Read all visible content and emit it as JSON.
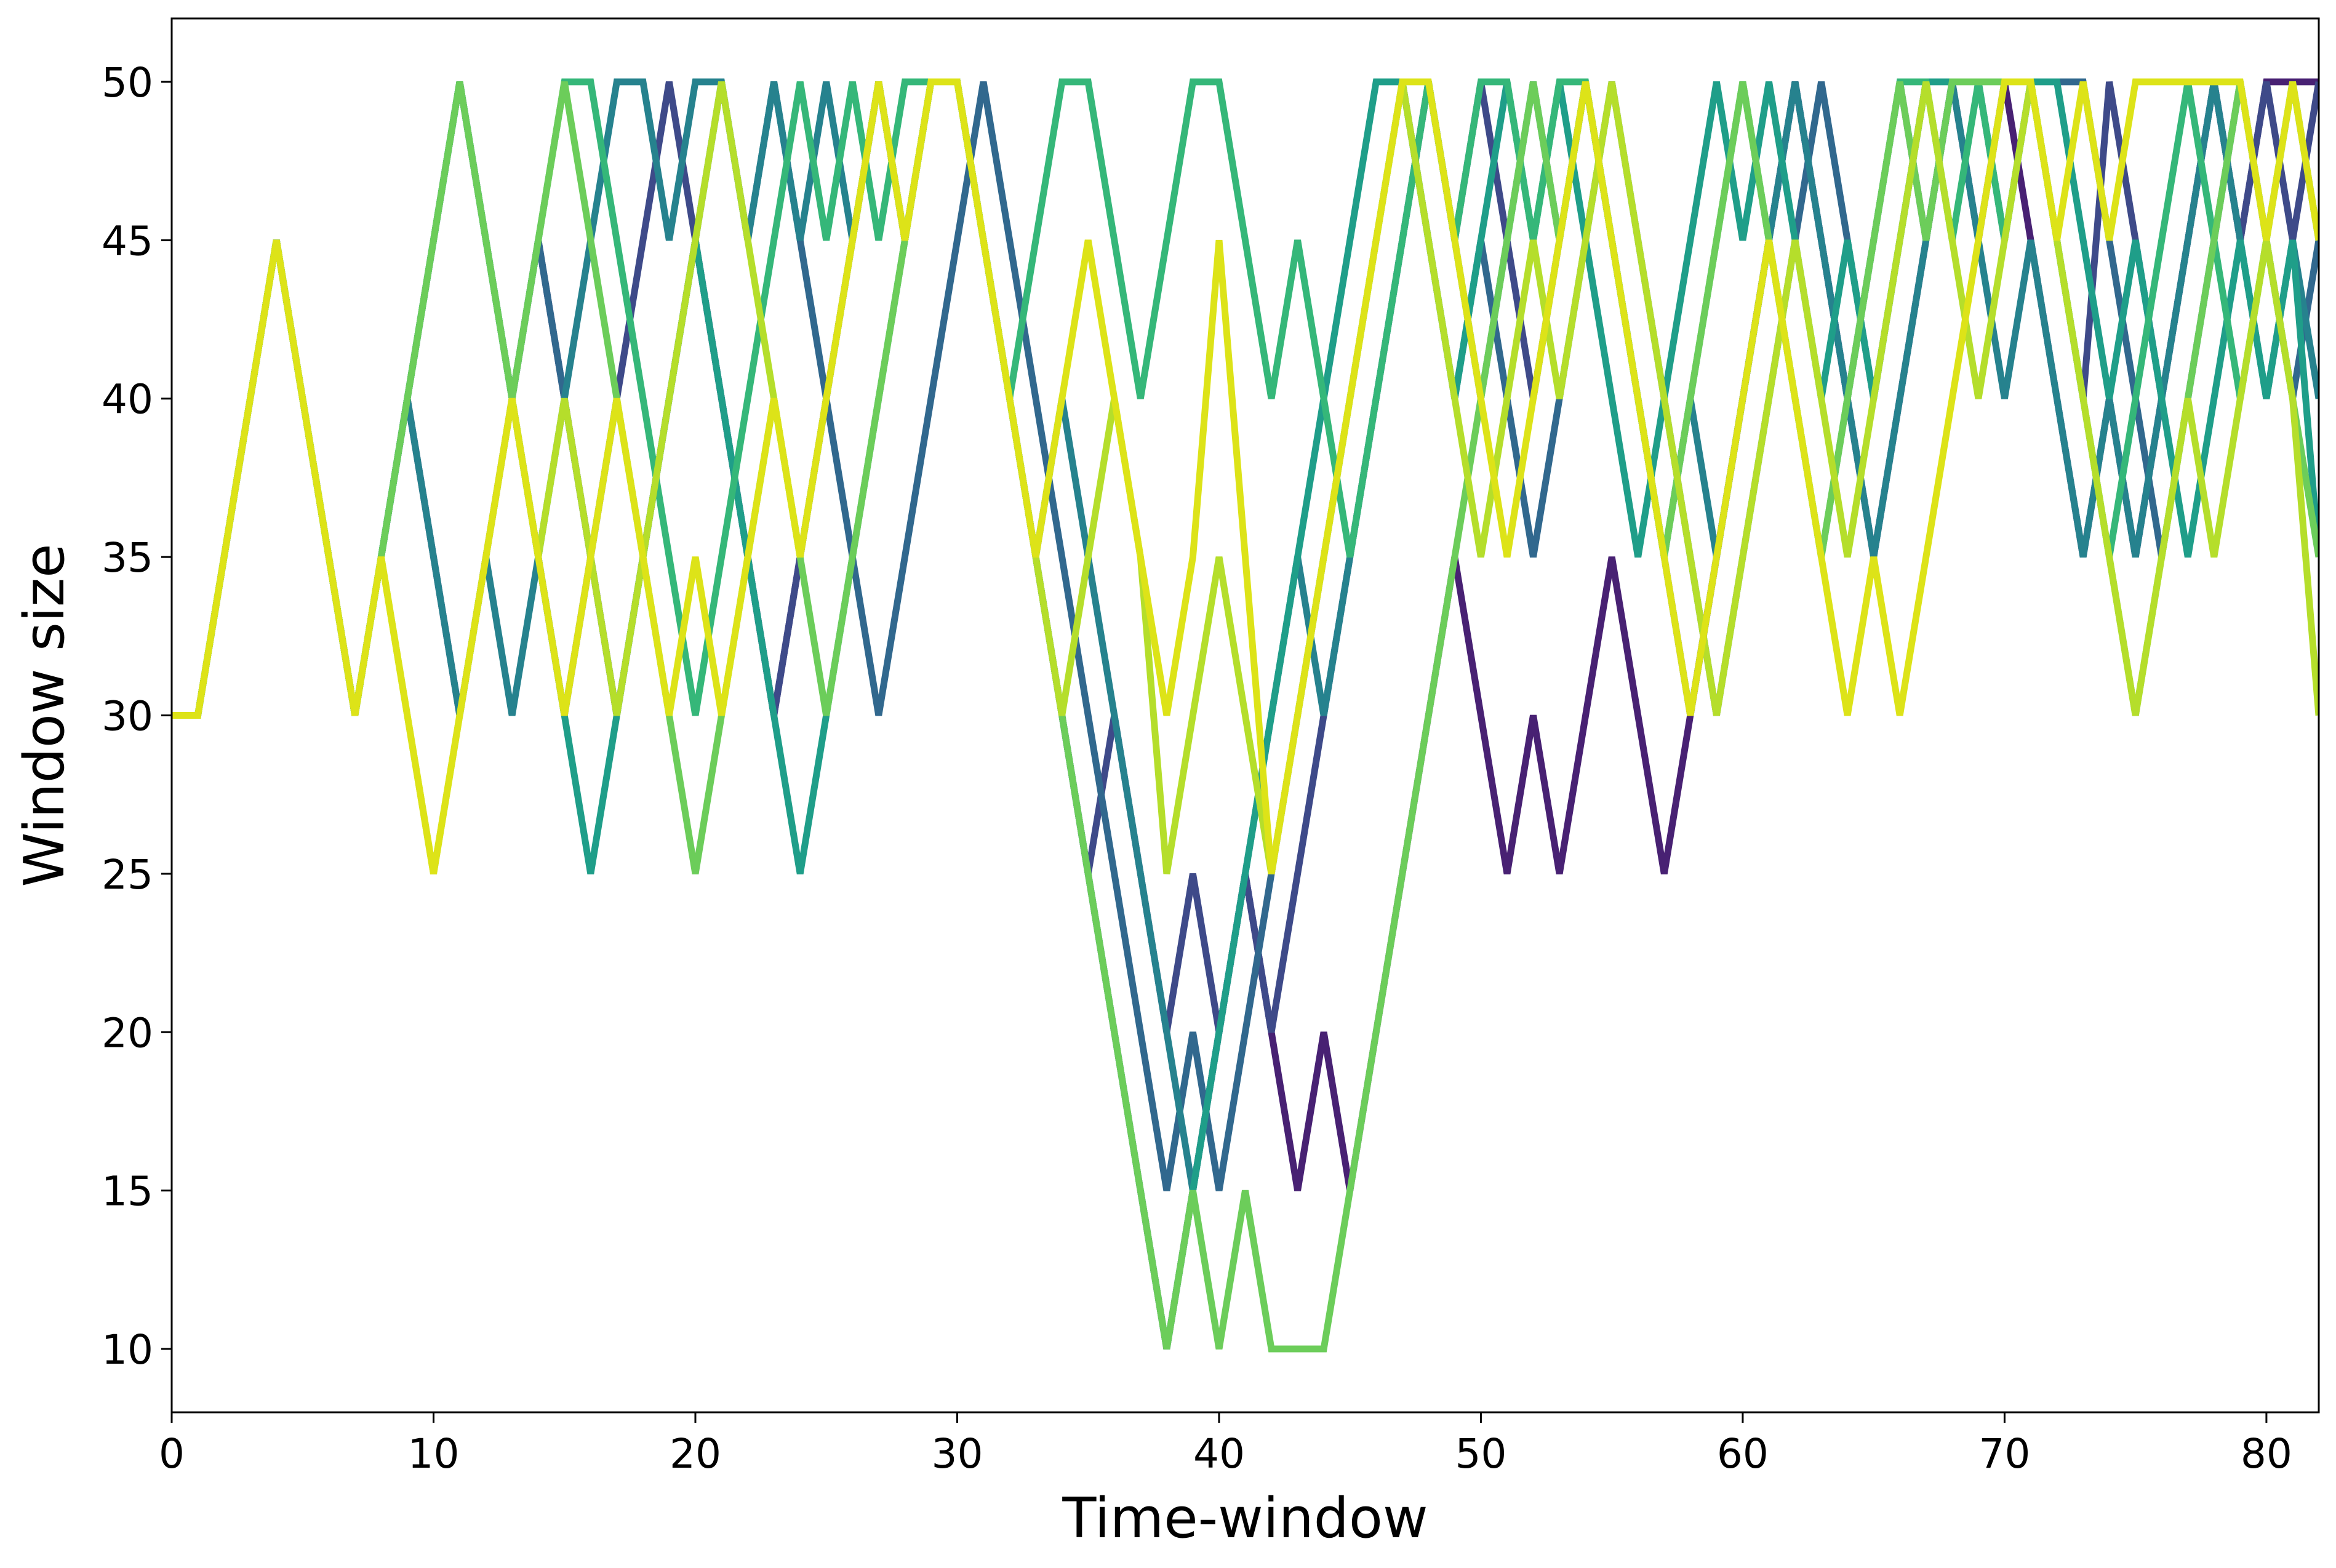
{
  "chart_data": {
    "type": "line",
    "title": "",
    "xlabel": "Time-window",
    "ylabel": "Window size",
    "xlim": [
      0,
      82
    ],
    "ylim": [
      8,
      52
    ],
    "xticks": [
      0,
      10,
      20,
      30,
      40,
      50,
      60,
      70,
      80
    ],
    "yticks": [
      10,
      15,
      20,
      25,
      30,
      35,
      40,
      45,
      50
    ],
    "grid": false,
    "legend": "none",
    "x": [
      0,
      1,
      2,
      3,
      4,
      5,
      6,
      7,
      8,
      9,
      10,
      11,
      12,
      13,
      14,
      15,
      16,
      17,
      18,
      19,
      20,
      21,
      22,
      23,
      24,
      25,
      26,
      27,
      28,
      29,
      30,
      31,
      32,
      33,
      34,
      35,
      36,
      37,
      38,
      39,
      40,
      41,
      42,
      43,
      44,
      45,
      46,
      47,
      48,
      49,
      50,
      51,
      52,
      53,
      54,
      55,
      56,
      57,
      58,
      59,
      60,
      61,
      62,
      63,
      64,
      65,
      66,
      67,
      68,
      69,
      70,
      71,
      72,
      73,
      74,
      75,
      76,
      77,
      78,
      79,
      80,
      81,
      82
    ],
    "series": [
      {
        "color": "#482173",
        "values": [
          30,
          30,
          35,
          40,
          45,
          40,
          35,
          30,
          35,
          40,
          35,
          30,
          35,
          40,
          45,
          40,
          35,
          30,
          35,
          40,
          45,
          40,
          35,
          30,
          35,
          40,
          45,
          50,
          45,
          50,
          50,
          45,
          40,
          35,
          30,
          25,
          20,
          15,
          10,
          15,
          20,
          25,
          20,
          15,
          20,
          15,
          20,
          25,
          30,
          35,
          30,
          25,
          30,
          25,
          30,
          35,
          30,
          25,
          30,
          35,
          40,
          45,
          50,
          45,
          40,
          35,
          40,
          45,
          50,
          45,
          50,
          45,
          40,
          35,
          40,
          35,
          40,
          45,
          50,
          45,
          50,
          50,
          50
        ]
      },
      {
        "color": "#3e4a89",
        "values": [
          30,
          30,
          35,
          40,
          45,
          40,
          35,
          30,
          35,
          40,
          45,
          50,
          45,
          40,
          35,
          30,
          35,
          40,
          45,
          50,
          45,
          40,
          35,
          30,
          35,
          40,
          45,
          50,
          45,
          50,
          50,
          45,
          40,
          35,
          30,
          25,
          30,
          25,
          20,
          25,
          20,
          25,
          20,
          25,
          30,
          35,
          40,
          45,
          50,
          45,
          50,
          45,
          40,
          45,
          50,
          45,
          40,
          35,
          30,
          35,
          40,
          45,
          50,
          45,
          40,
          45,
          50,
          45,
          50,
          50,
          50,
          50,
          45,
          40,
          50,
          45,
          40,
          45,
          50,
          45,
          50,
          45,
          50
        ]
      },
      {
        "color": "#31688e",
        "values": [
          30,
          30,
          35,
          40,
          45,
          40,
          35,
          30,
          35,
          40,
          45,
          50,
          45,
          40,
          45,
          40,
          35,
          30,
          35,
          40,
          45,
          50,
          45,
          50,
          45,
          40,
          35,
          30,
          35,
          40,
          45,
          50,
          45,
          40,
          35,
          30,
          25,
          20,
          15,
          20,
          15,
          20,
          25,
          30,
          35,
          40,
          45,
          50,
          45,
          40,
          45,
          40,
          35,
          40,
          45,
          50,
          45,
          40,
          35,
          30,
          35,
          40,
          45,
          50,
          45,
          40,
          45,
          50,
          50,
          50,
          45,
          50,
          50,
          50,
          45,
          40,
          35,
          40,
          45,
          50,
          45,
          40,
          45
        ]
      },
      {
        "color": "#26828e",
        "values": [
          30,
          30,
          35,
          40,
          45,
          40,
          35,
          30,
          35,
          40,
          35,
          30,
          35,
          30,
          35,
          40,
          45,
          50,
          50,
          45,
          50,
          50,
          45,
          50,
          45,
          50,
          45,
          50,
          45,
          50,
          50,
          45,
          40,
          35,
          40,
          35,
          30,
          25,
          20,
          15,
          20,
          25,
          30,
          35,
          30,
          35,
          40,
          45,
          50,
          45,
          40,
          45,
          50,
          45,
          50,
          45,
          40,
          35,
          40,
          35,
          40,
          45,
          50,
          45,
          40,
          35,
          40,
          45,
          50,
          45,
          40,
          45,
          40,
          35,
          40,
          35,
          40,
          45,
          50,
          45,
          40,
          45,
          40
        ]
      },
      {
        "color": "#1f9e89",
        "values": [
          30,
          30,
          35,
          40,
          45,
          40,
          35,
          30,
          35,
          40,
          45,
          50,
          45,
          40,
          35,
          30,
          25,
          30,
          35,
          40,
          45,
          40,
          35,
          30,
          25,
          30,
          35,
          40,
          45,
          50,
          50,
          45,
          40,
          35,
          30,
          25,
          20,
          15,
          10,
          15,
          20,
          25,
          30,
          35,
          40,
          45,
          50,
          50,
          45,
          40,
          45,
          50,
          45,
          50,
          45,
          40,
          35,
          40,
          45,
          50,
          45,
          50,
          45,
          40,
          45,
          40,
          45,
          50,
          50,
          50,
          50,
          50,
          50,
          45,
          40,
          45,
          40,
          35,
          40,
          45,
          40,
          45,
          35
        ]
      },
      {
        "color": "#35b779",
        "values": [
          30,
          30,
          35,
          40,
          45,
          40,
          35,
          30,
          35,
          40,
          45,
          50,
          45,
          40,
          45,
          50,
          50,
          45,
          40,
          35,
          30,
          35,
          40,
          45,
          50,
          45,
          50,
          45,
          50,
          50,
          50,
          45,
          40,
          45,
          50,
          50,
          45,
          40,
          45,
          50,
          50,
          45,
          40,
          45,
          40,
          35,
          40,
          45,
          50,
          45,
          50,
          50,
          45,
          50,
          50,
          45,
          40,
          35,
          40,
          45,
          50,
          45,
          40,
          35,
          40,
          45,
          50,
          50,
          45,
          50,
          45,
          50,
          45,
          40,
          35,
          40,
          45,
          50,
          45,
          40,
          45,
          50,
          45
        ]
      },
      {
        "color": "#6ccd5a",
        "values": [
          30,
          30,
          35,
          40,
          45,
          40,
          35,
          30,
          35,
          40,
          45,
          50,
          45,
          40,
          45,
          50,
          45,
          40,
          35,
          30,
          25,
          30,
          35,
          40,
          35,
          30,
          35,
          40,
          45,
          50,
          50,
          45,
          40,
          35,
          30,
          25,
          20,
          15,
          10,
          15,
          10,
          15,
          10,
          10,
          10,
          15,
          20,
          25,
          30,
          35,
          40,
          45,
          50,
          45,
          50,
          45,
          40,
          35,
          40,
          45,
          50,
          45,
          40,
          35,
          40,
          45,
          50,
          45,
          50,
          50,
          50,
          50,
          45,
          40,
          35,
          30,
          35,
          40,
          45,
          50,
          45,
          40,
          35
        ]
      },
      {
        "color": "#b5de2b",
        "values": [
          30,
          30,
          35,
          40,
          45,
          40,
          35,
          30,
          35,
          30,
          25,
          30,
          35,
          40,
          35,
          40,
          35,
          30,
          35,
          40,
          45,
          50,
          45,
          40,
          35,
          40,
          45,
          50,
          45,
          50,
          50,
          45,
          40,
          35,
          30,
          35,
          40,
          35,
          25,
          30,
          35,
          30,
          25,
          30,
          35,
          40,
          45,
          50,
          45,
          40,
          35,
          40,
          45,
          40,
          45,
          50,
          45,
          40,
          35,
          30,
          35,
          40,
          45,
          40,
          35,
          40,
          45,
          50,
          45,
          40,
          45,
          50,
          45,
          40,
          35,
          30,
          35,
          40,
          35,
          40,
          45,
          40,
          30
        ]
      },
      {
        "color": "#dde318",
        "values": [
          30,
          30,
          35,
          40,
          45,
          40,
          35,
          30,
          35,
          30,
          25,
          30,
          35,
          40,
          35,
          30,
          35,
          40,
          35,
          30,
          35,
          30,
          35,
          40,
          35,
          40,
          45,
          50,
          45,
          50,
          50,
          45,
          40,
          35,
          40,
          45,
          40,
          35,
          30,
          35,
          45,
          35,
          25,
          30,
          35,
          40,
          45,
          50,
          50,
          45,
          40,
          35,
          40,
          45,
          50,
          45,
          40,
          35,
          30,
          35,
          40,
          45,
          40,
          35,
          30,
          35,
          30,
          35,
          40,
          45,
          50,
          50,
          45,
          50,
          45,
          50,
          50,
          50,
          50,
          50,
          45,
          50,
          45
        ]
      }
    ]
  }
}
